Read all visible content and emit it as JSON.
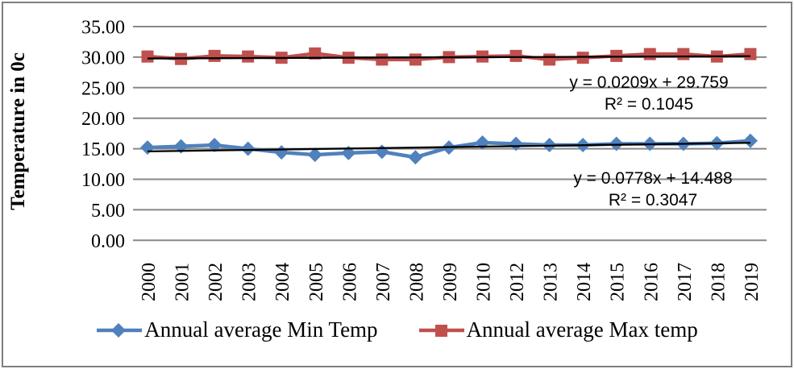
{
  "chart_data": {
    "type": "line",
    "title": "",
    "xlabel": "",
    "ylabel": "Temperature in 0c",
    "grid": true,
    "legend_position": "bottom",
    "categories": [
      "2000",
      "2001",
      "2002",
      "2003",
      "2004",
      "2005",
      "2006",
      "2007",
      "2008",
      "2009",
      "2010",
      "2012",
      "2013",
      "2014",
      "2015",
      "2016",
      "2017",
      "2018",
      "2019"
    ],
    "y_axis": {
      "min": 0,
      "max": 35,
      "step": 5,
      "tick_labels": [
        "0.00",
        "5.00",
        "10.00",
        "15.00",
        "20.00",
        "25.00",
        "30.00",
        "35.00"
      ]
    },
    "series": [
      {
        "name": "Annual average Min Temp",
        "color": "#4F81BD",
        "marker": "diamond",
        "values": [
          15.2,
          15.4,
          15.6,
          15.0,
          14.4,
          14.0,
          14.3,
          14.5,
          13.6,
          15.2,
          16.0,
          15.8,
          15.6,
          15.6,
          15.8,
          15.8,
          15.8,
          15.9,
          16.3
        ]
      },
      {
        "name": "Annual average Max temp",
        "color": "#C0504D",
        "marker": "square",
        "values": [
          30.1,
          29.7,
          30.2,
          30.1,
          29.9,
          30.6,
          29.9,
          29.6,
          29.6,
          30.0,
          30.1,
          30.2,
          29.6,
          29.9,
          30.2,
          30.5,
          30.5,
          30.1,
          30.5
        ]
      }
    ],
    "trendlines": [
      {
        "series_index": 1,
        "slope": 0.0209,
        "intercept": 29.759,
        "equation": "y = 0.0209x + 29.759",
        "r_squared": "R² = 0.1045",
        "color": "#000000"
      },
      {
        "series_index": 0,
        "slope": 0.0778,
        "intercept": 14.488,
        "equation": "y = 0.0778x + 14.488",
        "r_squared": "R² = 0.3047",
        "color": "#000000"
      }
    ],
    "gridline_color": "#878787",
    "frame_color": "#7f7f7f"
  }
}
